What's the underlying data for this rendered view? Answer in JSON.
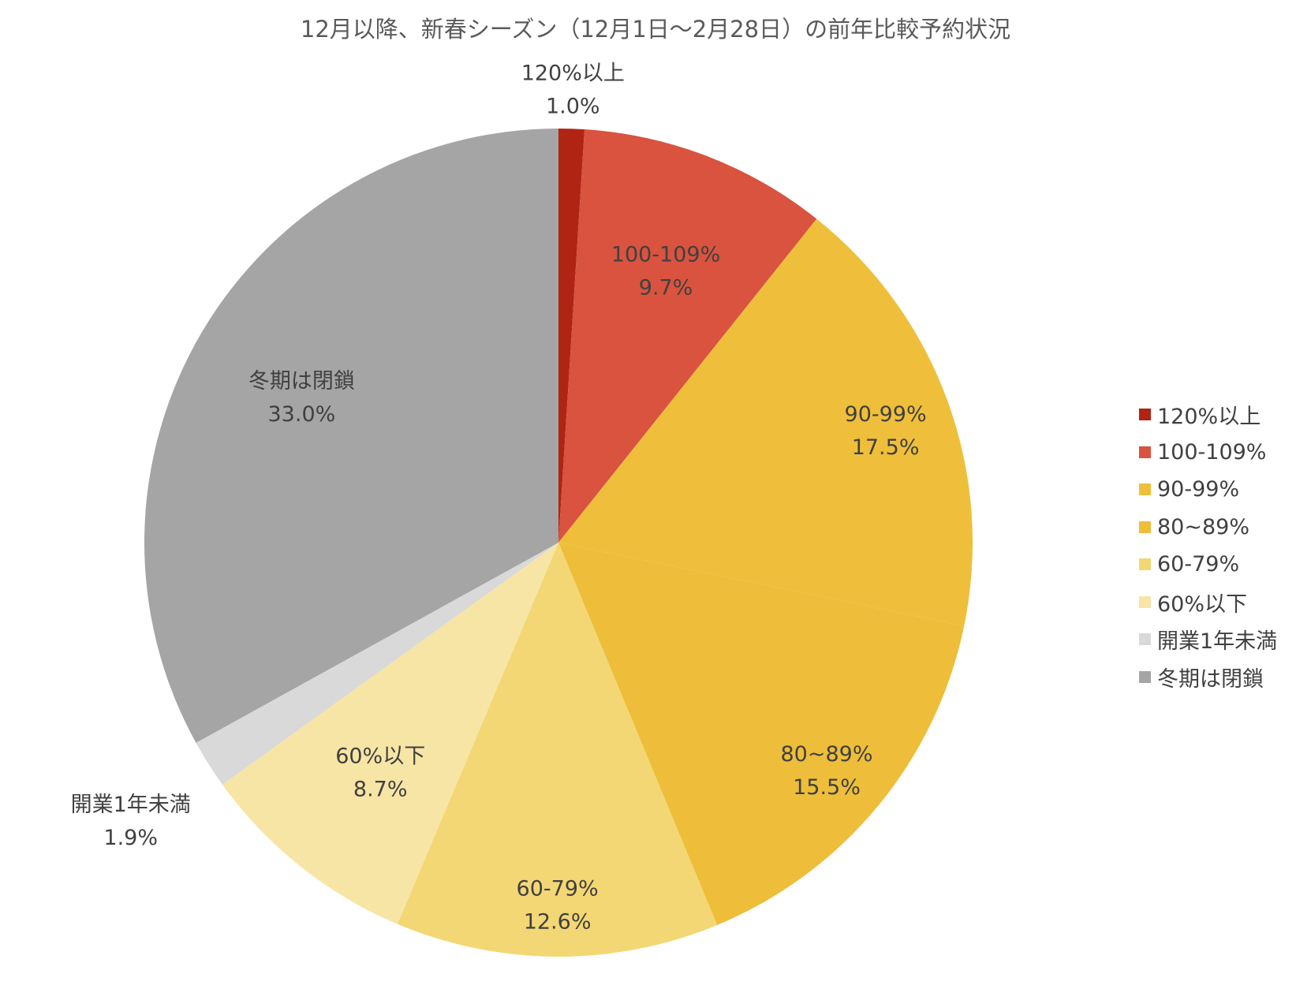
{
  "chart_data": {
    "type": "pie",
    "title": "12月以降、新春シーズン（12月1日〜2月28日）の前年比較予約状況",
    "categories": [
      "120%以上",
      "100-109%",
      "90-99%",
      "80~89%",
      "60-79%",
      "60%以下",
      "開業1年未満",
      "冬期は閉鎖"
    ],
    "values": [
      1.0,
      9.7,
      17.5,
      15.5,
      12.6,
      8.7,
      1.9,
      33.0
    ],
    "value_labels": [
      "1.0%",
      "9.7%",
      "17.5%",
      "15.5%",
      "12.6%",
      "8.7%",
      "1.9%",
      "33.0%"
    ],
    "colors": [
      "#AF2413",
      "#D9533F",
      "#EFBF3B",
      "#EEBE3A",
      "#F3D775",
      "#F7E5A5",
      "#D9D9D9",
      "#A5A5A5"
    ],
    "legend_position": "right",
    "start_angle": "12 o'clock",
    "direction": "clockwise"
  }
}
